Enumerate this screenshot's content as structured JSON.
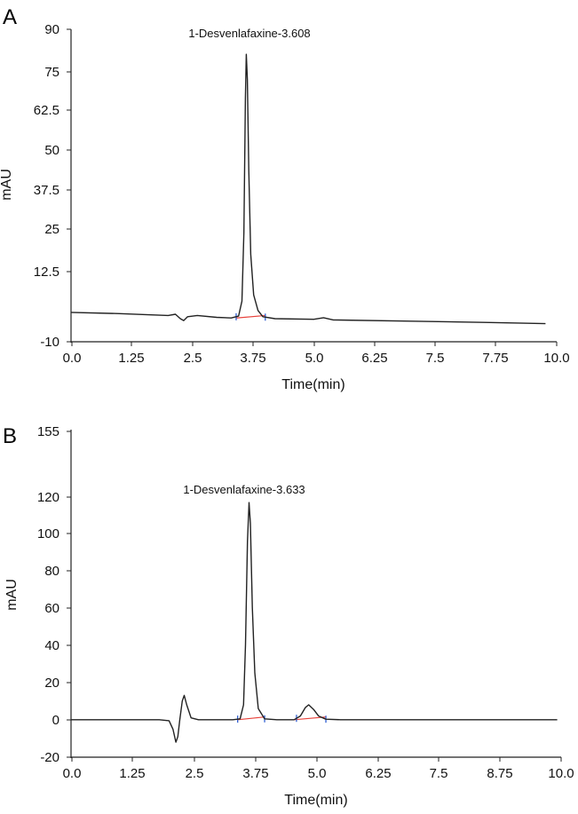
{
  "chart_data": [
    {
      "type": "line",
      "panel_label": "A",
      "xlabel": "Time(min)",
      "ylabel": "mAU",
      "xlim": [
        0,
        10
      ],
      "ylim": [
        -10,
        90
      ],
      "x_ticks": [
        "0.0",
        "1.25",
        "2.5",
        "3.75",
        "5.0",
        "6.25",
        "7.5",
        "7.75",
        "10.0"
      ],
      "y_ticks": [
        "-10",
        "12.5",
        "25",
        "37.5",
        "50",
        "62.5",
        "75",
        "90"
      ],
      "peak_annotation": "1-Desvenlafaxine-3.608",
      "series": [
        {
          "color": "#222222",
          "points": [
            [
              0.0,
              -0.6
            ],
            [
              1.0,
              -1.0
            ],
            [
              2.0,
              -1.6
            ],
            [
              2.15,
              -1.2
            ],
            [
              2.25,
              -2.6
            ],
            [
              2.32,
              -3.2
            ],
            [
              2.4,
              -2.0
            ],
            [
              2.6,
              -1.6
            ],
            [
              3.0,
              -2.2
            ],
            [
              3.3,
              -2.4
            ],
            [
              3.45,
              -1.8
            ],
            [
              3.52,
              3.0
            ],
            [
              3.56,
              25.0
            ],
            [
              3.59,
              68.0
            ],
            [
              3.608,
              82.0
            ],
            [
              3.63,
              74.0
            ],
            [
              3.66,
              45.0
            ],
            [
              3.7,
              18.0
            ],
            [
              3.76,
              5.0
            ],
            [
              3.85,
              0.0
            ],
            [
              3.95,
              -2.0
            ],
            [
              4.2,
              -2.6
            ],
            [
              5.0,
              -2.8
            ],
            [
              5.2,
              -2.3
            ],
            [
              5.4,
              -3.0
            ],
            [
              7.0,
              -3.4
            ],
            [
              8.5,
              -3.8
            ],
            [
              9.77,
              -4.2
            ]
          ]
        }
      ],
      "baseline_segments": [
        [
          [
            3.4,
            -2.4
          ],
          [
            4.0,
            -1.6
          ]
        ]
      ],
      "integration_marks": [
        3.4,
        4.0
      ]
    },
    {
      "type": "line",
      "panel_label": "B",
      "xlabel": "Time(min)",
      "ylabel": "mAU",
      "xlim": [
        0,
        10
      ],
      "ylim": [
        -20,
        155
      ],
      "x_ticks": [
        "0.0",
        "1.25",
        "2.5",
        "3.75",
        "5.0",
        "6.25",
        "7.5",
        "8.75",
        "10.0"
      ],
      "y_ticks": [
        "-20",
        "0",
        "20",
        "40",
        "60",
        "80",
        "100",
        "120",
        "155"
      ],
      "peak_annotation": "1-Desvenlafaxine-3.633",
      "series": [
        {
          "color": "#222222",
          "points": [
            [
              0.0,
              0.0
            ],
            [
              1.8,
              0.0
            ],
            [
              2.0,
              -0.5
            ],
            [
              2.08,
              -5.0
            ],
            [
              2.14,
              -12.0
            ],
            [
              2.18,
              -9.0
            ],
            [
              2.22,
              0.0
            ],
            [
              2.27,
              10.0
            ],
            [
              2.31,
              13.0
            ],
            [
              2.36,
              8.0
            ],
            [
              2.45,
              1.0
            ],
            [
              2.6,
              0.0
            ],
            [
              3.3,
              0.0
            ],
            [
              3.45,
              0.5
            ],
            [
              3.52,
              8.0
            ],
            [
              3.56,
              40.0
            ],
            [
              3.6,
              95.0
            ],
            [
              3.633,
              116.0
            ],
            [
              3.66,
              105.0
            ],
            [
              3.7,
              60.0
            ],
            [
              3.75,
              25.0
            ],
            [
              3.82,
              6.0
            ],
            [
              3.95,
              0.5
            ],
            [
              4.2,
              0.0
            ],
            [
              4.55,
              0.0
            ],
            [
              4.68,
              2.0
            ],
            [
              4.78,
              6.5
            ],
            [
              4.85,
              8.0
            ],
            [
              4.95,
              5.5
            ],
            [
              5.05,
              2.0
            ],
            [
              5.2,
              0.3
            ],
            [
              5.5,
              0.0
            ],
            [
              9.92,
              0.0
            ]
          ]
        }
      ],
      "baseline_segments": [
        [
          [
            3.4,
            0.0
          ],
          [
            3.95,
            1.5
          ]
        ],
        [
          [
            4.55,
            0.0
          ],
          [
            5.2,
            1.5
          ]
        ]
      ],
      "integration_marks": [
        3.4,
        3.95,
        4.6,
        5.2
      ]
    }
  ]
}
